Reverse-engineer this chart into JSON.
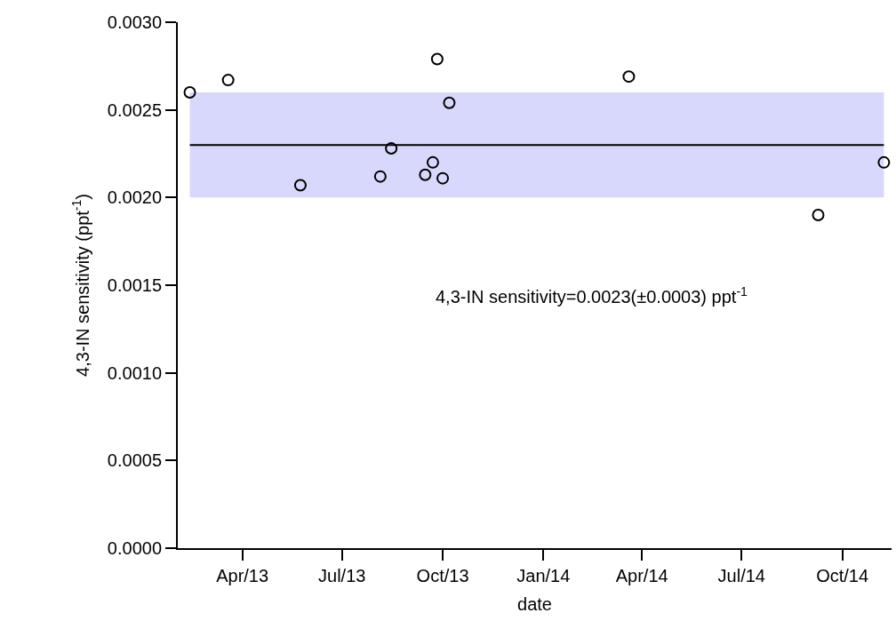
{
  "chart_data": {
    "type": "scatter",
    "xlabel": "date",
    "ylabel": "4,3-IN sensitivity (ppt$^{-1}$)",
    "x": [
      "2013-02-12",
      "2013-03-19",
      "2013-05-24",
      "2013-08-05",
      "2013-08-15",
      "2013-09-15",
      "2013-09-22",
      "2013-09-26",
      "2013-10-01",
      "2013-10-07",
      "2014-03-20",
      "2014-09-09",
      "2014-11-08"
    ],
    "series": [
      {
        "color": "#000000",
        "values": [
          0.0026,
          0.00267,
          0.00207,
          0.00212,
          0.00228,
          0.00213,
          0.0022,
          0.00279,
          0.00211,
          0.00254,
          0.00269,
          0.0019,
          0.0022
        ]
      }
    ],
    "marker": "circle",
    "xlim": [
      "2013-02-01",
      "2014-11-15"
    ],
    "ylim": [
      0,
      0.003
    ],
    "xticks": [
      {
        "value": "2013-04-01",
        "label": "Apr/13"
      },
      {
        "value": "2013-07-01",
        "label": "Jul/13"
      },
      {
        "value": "2013-10-01",
        "label": "Oct/13"
      },
      {
        "value": "2014-01-01",
        "label": "Jan/14"
      },
      {
        "value": "2014-04-01",
        "label": "Apr/14"
      },
      {
        "value": "2014-07-01",
        "label": "Jul/14"
      },
      {
        "value": "2014-10-01",
        "label": "Oct/14"
      }
    ],
    "yticks": [
      {
        "value": 0,
        "label": "0.0000"
      },
      {
        "value": 0.0005,
        "label": "0.0005"
      },
      {
        "value": 0.001,
        "label": "0.0010"
      },
      {
        "value": 0.0015,
        "label": "0.0015"
      },
      {
        "value": 0.002,
        "label": "0.0020"
      },
      {
        "value": 0.0025,
        "label": "0.0025"
      },
      {
        "value": 0.003,
        "label": "0.0030"
      }
    ],
    "ref_lines": [
      {
        "axis": "y",
        "value": 0.0023,
        "color": "#000000"
      }
    ],
    "bands": [
      {
        "axis": "y",
        "from": 0.002,
        "to": 0.0026,
        "color": "#d8d8fc"
      }
    ],
    "annotations": [
      "4,3-IN sensitivity=0.0023(±0.0003) ppt$^{-1}$"
    ]
  }
}
